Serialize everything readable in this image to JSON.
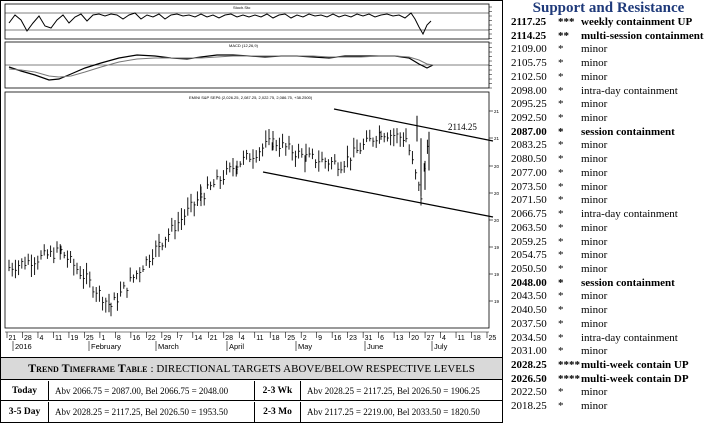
{
  "chart": {
    "osc_top_label": "Stoch.Sto",
    "osc_mid_label": "MACD (12,26,9)",
    "price_label": "EMINI S&P SEP6 (2,026.25, 2,087.25, 2,022.75, 2,086.75, +38.2500)",
    "annotation": "2114.25",
    "x_ticks": [
      "21",
      "28",
      "4",
      "11",
      "19",
      "25",
      "1",
      "8",
      "16",
      "22",
      "29",
      "7",
      "14",
      "21",
      "28",
      "4",
      "11",
      "18",
      "25",
      "2",
      "9",
      "16",
      "23",
      "31",
      "6",
      "13",
      "20",
      "27",
      "4",
      "11",
      "18",
      "25"
    ],
    "months": [
      "2016",
      "February",
      "March",
      "April",
      "May",
      "June",
      "July"
    ],
    "y_ticks_price": [
      "21",
      "21",
      "20",
      "20",
      "20",
      "19",
      "19",
      "19",
      "19",
      "18",
      "18"
    ]
  },
  "chart_data": {
    "type": "candlestick",
    "title": "EMINI S&P SEP6 (2,026.25, 2,087.25, 2,022.75, 2,086.75, +38.2500)",
    "x": [
      "Jan 21",
      "Feb 1",
      "Feb 16",
      "Mar 1",
      "Mar 14",
      "Apr 1",
      "Apr 18",
      "May 2",
      "May 16",
      "Jun 1",
      "Jun 13",
      "Jun 24",
      "Jun 27"
    ],
    "y": [
      1880,
      1905,
      1820,
      1915,
      1990,
      2040,
      2075,
      2050,
      2040,
      2090,
      2080,
      1990,
      2087
    ],
    "annotations": [
      "2114.25"
    ]
  },
  "trend_table": {
    "title_bold": "Trend Timeframe Table",
    "title_rest": ": DIRECTIONAL TARGETS ABOVE/BELOW RESPECTIVE LEVELS",
    "rows": [
      {
        "label": "Today",
        "value": "Abv 2066.75 = 2087.00, Bel 2066.75 = 2048.00",
        "label2": "2-3 Wk",
        "value2": "Abv 2028.25 = 2117.25, Bel 2026.50 = 1906.25"
      },
      {
        "label": "3-5 Day",
        "value": "Abv 2028.25 = 2117.25, Bel 2026.50 = 1953.50",
        "label2": "2-3 Mo",
        "value2": "Abv 2117.25 = 2219.00, Bel 2033.50 = 1820.50"
      }
    ]
  },
  "support_resistance": {
    "title": "Support and Resistance",
    "levels": [
      {
        "price": "2117.25",
        "stars": "***",
        "desc": "weekly containment UP",
        "bold": true
      },
      {
        "price": "2114.25",
        "stars": "**",
        "desc": "multi-session containment",
        "bold": true
      },
      {
        "price": "2109.00",
        "stars": "*",
        "desc": "minor",
        "bold": false
      },
      {
        "price": "2105.75",
        "stars": "*",
        "desc": "minor",
        "bold": false
      },
      {
        "price": "2102.50",
        "stars": "*",
        "desc": "minor",
        "bold": false
      },
      {
        "price": "2098.00",
        "stars": "*",
        "desc": "intra-day containment",
        "bold": false
      },
      {
        "price": "2095.25",
        "stars": "*",
        "desc": "minor",
        "bold": false
      },
      {
        "price": "2092.50",
        "stars": "*",
        "desc": "minor",
        "bold": false
      },
      {
        "price": "2087.00",
        "stars": "*",
        "desc": "session containment",
        "bold": true
      },
      {
        "price": "2083.25",
        "stars": "*",
        "desc": "minor",
        "bold": false
      },
      {
        "price": "2080.50",
        "stars": "*",
        "desc": "minor",
        "bold": false
      },
      {
        "price": "2077.00",
        "stars": "*",
        "desc": "minor",
        "bold": false
      },
      {
        "price": "2073.50",
        "stars": "*",
        "desc": "minor",
        "bold": false
      },
      {
        "price": "2071.50",
        "stars": "*",
        "desc": "minor",
        "bold": false
      },
      {
        "price": "2066.75",
        "stars": "*",
        "desc": "intra-day containment",
        "bold": false
      },
      {
        "price": "2063.50",
        "stars": "*",
        "desc": "minor",
        "bold": false
      },
      {
        "price": "2059.25",
        "stars": "*",
        "desc": "minor",
        "bold": false
      },
      {
        "price": "2054.75",
        "stars": "*",
        "desc": "minor",
        "bold": false
      },
      {
        "price": "2050.50",
        "stars": "*",
        "desc": "minor",
        "bold": false
      },
      {
        "price": "2048.00",
        "stars": "*",
        "desc": "session containment",
        "bold": true
      },
      {
        "price": "2043.50",
        "stars": "*",
        "desc": "minor",
        "bold": false
      },
      {
        "price": "2040.50",
        "stars": "*",
        "desc": "minor",
        "bold": false
      },
      {
        "price": "2037.50",
        "stars": "*",
        "desc": "minor",
        "bold": false
      },
      {
        "price": "2034.50",
        "stars": "*",
        "desc": "intra-day containment",
        "bold": false
      },
      {
        "price": "2031.00",
        "stars": "*",
        "desc": "minor",
        "bold": false
      },
      {
        "price": "2028.25",
        "stars": "****",
        "desc": "multi-week contain UP",
        "bold": true
      },
      {
        "price": "2026.50",
        "stars": "****",
        "desc": "multi-week contain DP",
        "bold": true
      },
      {
        "price": "2022.50",
        "stars": "*",
        "desc": "minor",
        "bold": false
      },
      {
        "price": "2018.25",
        "stars": "*",
        "desc": "minor",
        "bold": false
      }
    ]
  }
}
